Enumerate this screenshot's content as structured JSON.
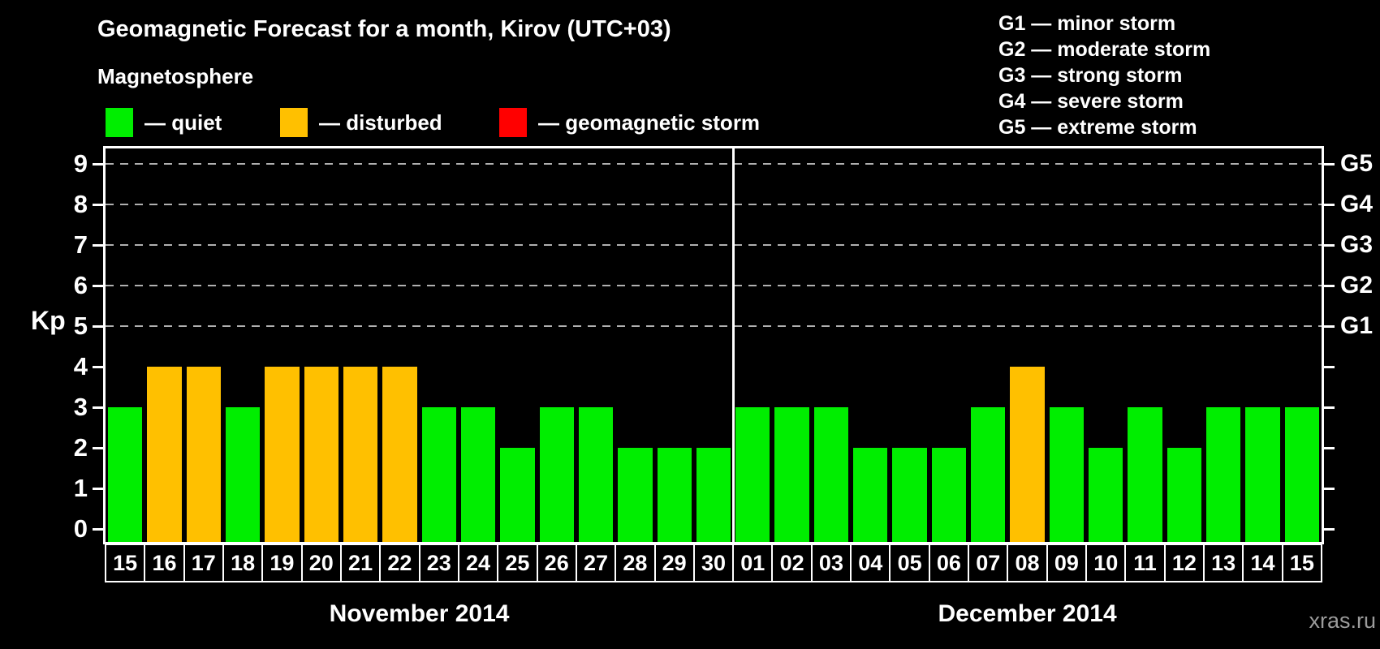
{
  "magnetosphere_legend": {
    "heading": "Magnetosphere",
    "items": [
      {
        "status": "quiet",
        "label": "— quiet",
        "color": "#00ee00"
      },
      {
        "status": "disturbed",
        "label": "— disturbed",
        "color": "#ffc000"
      },
      {
        "status": "storm",
        "label": "— geomagnetic storm",
        "color": "#ff0000"
      }
    ]
  },
  "storm_scale_legend": {
    "lines": [
      "G1 — minor storm",
      "G2 — moderate storm",
      "G3 — strong storm",
      "G4 — severe storm",
      "G5 — extreme storm"
    ]
  },
  "watermark": "xras.ru",
  "chart_data": {
    "type": "bar",
    "title": "Geomagnetic Forecast for a month, Kirov (UTC+03)",
    "ylabel": "Kp",
    "ylim": [
      0,
      9
    ],
    "yticks": [
      0,
      1,
      2,
      3,
      4,
      5,
      6,
      7,
      8,
      9
    ],
    "grid": "horizontal dashed gridlines at Kp 5 through 9",
    "gridlines_at": [
      5,
      6,
      7,
      8,
      9
    ],
    "right_axis_labels": {
      "5": "G1",
      "6": "G2",
      "7": "G3",
      "8": "G4",
      "9": "G5"
    },
    "legend_position": "top",
    "bar_color_by_status": {
      "quiet": "#00ee00",
      "disturbed": "#ffc000",
      "storm": "#ff0000"
    },
    "sections": [
      {
        "month_label": "November 2014",
        "days": [
          "15",
          "16",
          "17",
          "18",
          "19",
          "20",
          "21",
          "22",
          "23",
          "24",
          "25",
          "26",
          "27",
          "28",
          "29",
          "30"
        ],
        "values": [
          3,
          4,
          4,
          3,
          4,
          4,
          4,
          4,
          3,
          3,
          2,
          3,
          3,
          2,
          2,
          2
        ],
        "statuses": [
          "quiet",
          "disturbed",
          "disturbed",
          "quiet",
          "disturbed",
          "disturbed",
          "disturbed",
          "disturbed",
          "quiet",
          "quiet",
          "quiet",
          "quiet",
          "quiet",
          "quiet",
          "quiet",
          "quiet"
        ]
      },
      {
        "month_label": "December 2014",
        "days": [
          "01",
          "02",
          "03",
          "04",
          "05",
          "06",
          "07",
          "08",
          "09",
          "10",
          "11",
          "12",
          "13",
          "14",
          "15"
        ],
        "values": [
          3,
          3,
          3,
          2,
          2,
          2,
          3,
          4,
          3,
          2,
          3,
          2,
          3,
          3,
          3
        ],
        "statuses": [
          "quiet",
          "quiet",
          "quiet",
          "quiet",
          "quiet",
          "quiet",
          "quiet",
          "disturbed",
          "quiet",
          "quiet",
          "quiet",
          "quiet",
          "quiet",
          "quiet",
          "quiet"
        ]
      }
    ]
  }
}
